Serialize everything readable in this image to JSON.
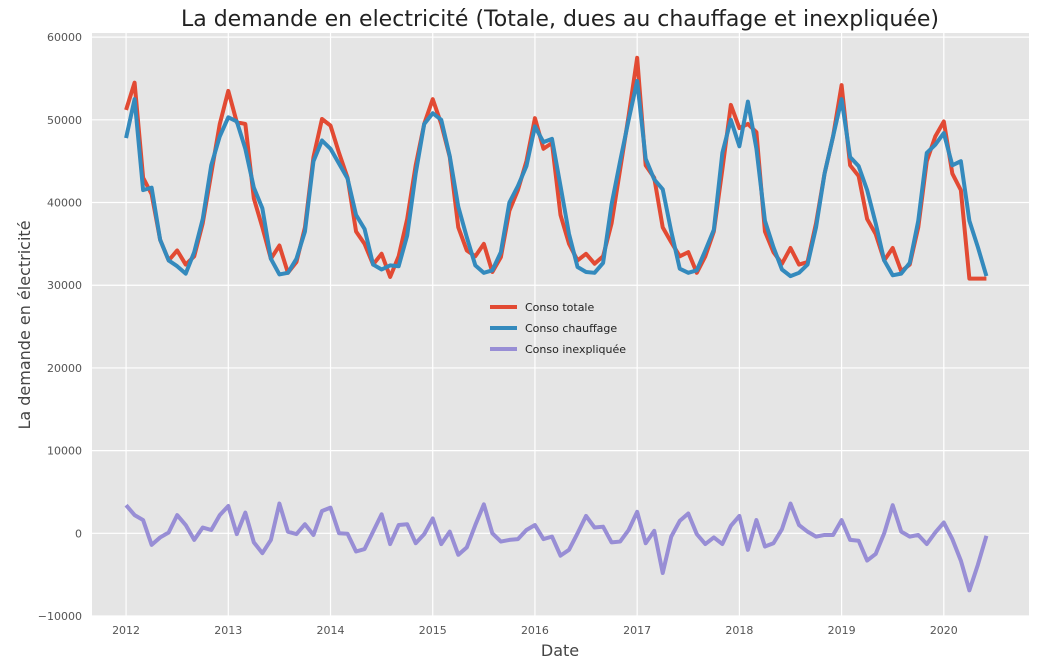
{
  "chart_data": {
    "type": "line",
    "title": "La demande en electricité (Totale, dues au chauffage et inexpliquée)",
    "xlabel": "Date",
    "ylabel": "La demande en électricité",
    "x_ticks": [
      "2012",
      "2013",
      "2014",
      "2015",
      "2016",
      "2017",
      "2018",
      "2019",
      "2020"
    ],
    "y_ticks": [
      "−10000",
      "0",
      "10000",
      "20000",
      "30000",
      "40000",
      "50000",
      "60000"
    ],
    "ylim": [
      -10000,
      60500
    ],
    "xlim": [
      "2011-09",
      "2020-11"
    ],
    "grid": true,
    "legend_position": "center",
    "x": [
      "2012-01",
      "2012-02",
      "2012-03",
      "2012-04",
      "2012-05",
      "2012-06",
      "2012-07",
      "2012-08",
      "2012-09",
      "2012-10",
      "2012-11",
      "2012-12",
      "2013-01",
      "2013-02",
      "2013-03",
      "2013-04",
      "2013-05",
      "2013-06",
      "2013-07",
      "2013-08",
      "2013-09",
      "2013-10",
      "2013-11",
      "2013-12",
      "2014-01",
      "2014-02",
      "2014-03",
      "2014-04",
      "2014-05",
      "2014-06",
      "2014-07",
      "2014-08",
      "2014-09",
      "2014-10",
      "2014-11",
      "2014-12",
      "2015-01",
      "2015-02",
      "2015-03",
      "2015-04",
      "2015-05",
      "2015-06",
      "2015-07",
      "2015-08",
      "2015-09",
      "2015-10",
      "2015-11",
      "2015-12",
      "2016-01",
      "2016-02",
      "2016-03",
      "2016-04",
      "2016-05",
      "2016-06",
      "2016-07",
      "2016-08",
      "2016-09",
      "2016-10",
      "2016-11",
      "2016-12",
      "2017-01",
      "2017-02",
      "2017-03",
      "2017-04",
      "2017-05",
      "2017-06",
      "2017-07",
      "2017-08",
      "2017-09",
      "2017-10",
      "2017-11",
      "2017-12",
      "2018-01",
      "2018-02",
      "2018-03",
      "2018-04",
      "2018-05",
      "2018-06",
      "2018-07",
      "2018-08",
      "2018-09",
      "2018-10",
      "2018-11",
      "2018-12",
      "2019-01",
      "2019-02",
      "2019-03",
      "2019-04",
      "2019-05",
      "2019-06",
      "2019-07",
      "2019-08",
      "2019-09",
      "2019-10",
      "2019-11",
      "2019-12",
      "2020-01",
      "2020-02",
      "2020-03",
      "2020-04",
      "2020-05",
      "2020-06"
    ],
    "series": [
      {
        "name": "Conso totale",
        "color": "#E24A33",
        "values": [
          51200,
          54500,
          43000,
          41000,
          35500,
          33000,
          34200,
          32500,
          33500,
          37500,
          43500,
          49500,
          53500,
          49700,
          49500,
          40500,
          37000,
          33200,
          34800,
          31500,
          32800,
          37000,
          45500,
          50100,
          49300,
          46000,
          43000,
          36500,
          35000,
          32500,
          33800,
          31000,
          33500,
          38000,
          44500,
          49500,
          52500,
          49500,
          45500,
          37000,
          34200,
          33500,
          35000,
          31600,
          33400,
          39000,
          41500,
          45000,
          50200,
          46500,
          47200,
          38500,
          35000,
          33000,
          33800,
          32600,
          33500,
          37500,
          44000,
          50500,
          57500,
          44500,
          43000,
          37000,
          35200,
          33500,
          34000,
          31500,
          33500,
          36500,
          44000,
          51800,
          49000,
          49500,
          48500,
          36500,
          34000,
          32600,
          34500,
          32500,
          32800,
          37500,
          43500,
          48000,
          54200,
          44500,
          43200,
          38000,
          36200,
          33000,
          34500,
          31700,
          32500,
          37000,
          45000,
          48000,
          49800,
          43500,
          41500,
          30800,
          30800,
          30800
        ]
      },
      {
        "name": "Conso chauffage",
        "color": "#348ABD",
        "values": [
          47800,
          52500,
          41500,
          41800,
          35500,
          33000,
          32300,
          31400,
          34000,
          38000,
          44500,
          48000,
          50300,
          49800,
          46500,
          41800,
          39300,
          33200,
          31300,
          31500,
          33200,
          36500,
          45000,
          47500,
          46500,
          44700,
          42900,
          38500,
          36800,
          32500,
          31900,
          32400,
          32300,
          36000,
          43500,
          49500,
          50800,
          50000,
          45600,
          39500,
          35800,
          32400,
          31500,
          31800,
          34000,
          40000,
          42000,
          44400,
          49200,
          47300,
          47700,
          42000,
          36200,
          32200,
          31600,
          31500,
          32700,
          39800,
          45000,
          50000,
          54700,
          45300,
          42800,
          41600,
          36500,
          32000,
          31500,
          31800,
          34200,
          36700,
          46000,
          50000,
          46800,
          52200,
          46500,
          37800,
          34600,
          31900,
          31100,
          31500,
          32500,
          37000,
          43500,
          48000,
          52500,
          45500,
          44400,
          41500,
          37500,
          33000,
          31200,
          31400,
          32700,
          37800,
          46000,
          47000,
          48400,
          44500,
          45000,
          37800,
          34600,
          31100
        ]
      },
      {
        "name": "Conso inexpliquée",
        "color": "#988ED5",
        "values": [
          3400,
          2200,
          1600,
          -1400,
          -500,
          100,
          2200,
          1000,
          -800,
          700,
          400,
          2200,
          3300,
          -100,
          2500,
          -1100,
          -2400,
          -800,
          3600,
          200,
          -100,
          1100,
          -200,
          2700,
          3100,
          0,
          -50,
          -2200,
          -1900,
          200,
          2300,
          -1300,
          1000,
          1100,
          -1200,
          -100,
          1800,
          -1300,
          200,
          -2600,
          -1700,
          1000,
          3500,
          0,
          -1000,
          -800,
          -700,
          400,
          1000,
          -700,
          -400,
          -2700,
          -2000,
          0,
          2100,
          700,
          800,
          -1100,
          -1000,
          400,
          2600,
          -1200,
          300,
          -4800,
          -400,
          1500,
          2400,
          -100,
          -1300,
          -500,
          -1300,
          900,
          2100,
          -2000,
          1600,
          -1600,
          -1200,
          500,
          3600,
          1000,
          200,
          -400,
          -200,
          -200,
          1600,
          -800,
          -900,
          -3300,
          -2500,
          0,
          3400,
          200,
          -400,
          -200,
          -1300,
          100,
          1300,
          -700,
          -3300,
          -6900,
          -3800,
          -300
        ]
      }
    ]
  }
}
